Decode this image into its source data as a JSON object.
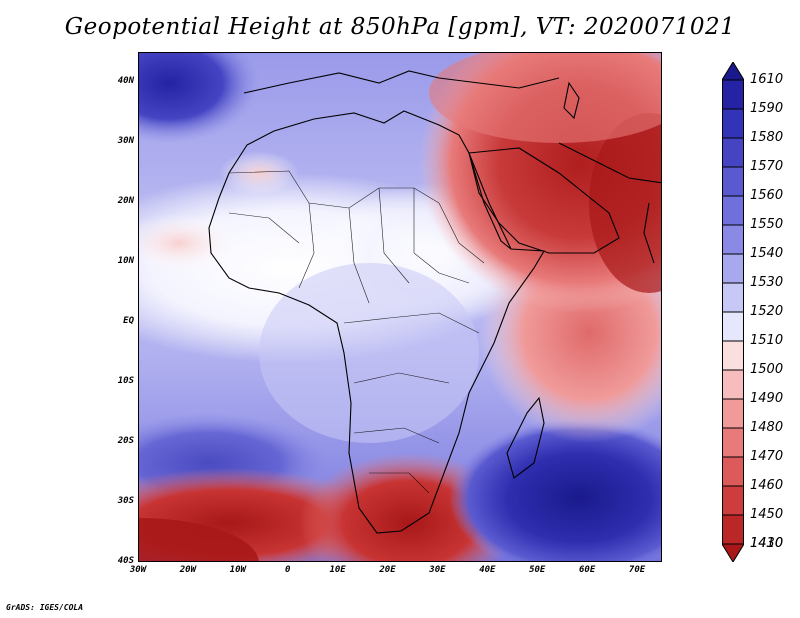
{
  "title": "Geopotential Height at 850hPa [gpm], VT: 2020071021",
  "credit": "GrADS: IGES/COLA",
  "map": {
    "region": "Africa and Middle East",
    "lon_range": [
      -30,
      75
    ],
    "lat_range": [
      -40,
      45
    ],
    "lat_labels": [
      "40N",
      "30N",
      "20N",
      "10N",
      "EQ",
      "10S",
      "20S",
      "30S",
      "40S"
    ],
    "lon_labels": [
      "30W",
      "20W",
      "10W",
      "0",
      "10E",
      "20E",
      "30E",
      "40E",
      "50E",
      "60E",
      "70E"
    ]
  },
  "colorbar": {
    "labels": [
      "1610",
      "1590",
      "1580",
      "1570",
      "1560",
      "1550",
      "1540",
      "1530",
      "1520",
      "1510",
      "1500",
      "1490",
      "1480",
      "1470",
      "1460",
      "1450",
      "1430",
      "1410"
    ],
    "colors": [
      "#1a1a8c",
      "#2323a3",
      "#3333b8",
      "#4545c4",
      "#5a5ad0",
      "#7070dc",
      "#8a8ae6",
      "#a8a8ef",
      "#c8c8f6",
      "#e6e6fc",
      "#fbdede",
      "#f7bcbc",
      "#f09a9a",
      "#e87a7a",
      "#dd5a5a",
      "#cd3d3d",
      "#bb2626",
      "#a81818"
    ]
  }
}
